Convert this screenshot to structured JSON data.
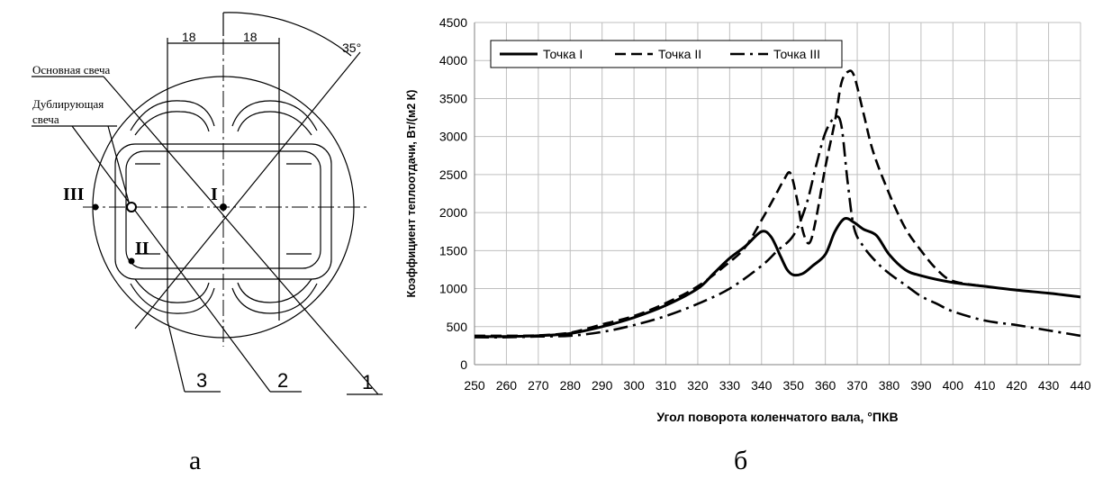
{
  "drawing": {
    "dim_left": "18",
    "dim_right": "18",
    "angle": "35°",
    "label_main_plug": "Основная свеча",
    "label_backup_plug_line1": "Дублирующая",
    "label_backup_plug_line2": "свеча",
    "point_I": "I",
    "point_II": "II",
    "point_III": "III",
    "leader_1": "1",
    "leader_2": "2",
    "leader_3": "3"
  },
  "captions": {
    "left": "а",
    "right": "б"
  },
  "chart_data": {
    "type": "line",
    "xlabel": "Угол поворота коленчатого вала, °ПКВ",
    "ylabel": "Коэффициент теплоотдачи, Вт/(м2 К)",
    "xlim": [
      250,
      440
    ],
    "ylim": [
      0,
      4500
    ],
    "xticks": [
      250,
      260,
      270,
      280,
      290,
      300,
      310,
      320,
      330,
      340,
      350,
      360,
      370,
      380,
      390,
      400,
      410,
      420,
      430,
      440
    ],
    "yticks": [
      0,
      500,
      1000,
      1500,
      2000,
      2500,
      3000,
      3500,
      4000,
      4500
    ],
    "grid": true,
    "legend_position": "top-left",
    "series": [
      {
        "name": "Точка I",
        "dash": "solid",
        "points": [
          [
            250,
            370
          ],
          [
            260,
            370
          ],
          [
            270,
            380
          ],
          [
            280,
            410
          ],
          [
            290,
            500
          ],
          [
            300,
            620
          ],
          [
            310,
            780
          ],
          [
            320,
            1000
          ],
          [
            325,
            1200
          ],
          [
            330,
            1400
          ],
          [
            335,
            1560
          ],
          [
            340,
            1750
          ],
          [
            343,
            1680
          ],
          [
            346,
            1420
          ],
          [
            348,
            1250
          ],
          [
            350,
            1180
          ],
          [
            353,
            1200
          ],
          [
            356,
            1300
          ],
          [
            360,
            1450
          ],
          [
            363,
            1750
          ],
          [
            366,
            1920
          ],
          [
            369,
            1870
          ],
          [
            372,
            1780
          ],
          [
            376,
            1700
          ],
          [
            380,
            1450
          ],
          [
            385,
            1250
          ],
          [
            390,
            1170
          ],
          [
            400,
            1080
          ],
          [
            410,
            1030
          ],
          [
            420,
            980
          ],
          [
            430,
            940
          ],
          [
            440,
            890
          ]
        ]
      },
      {
        "name": "Точка II",
        "dash": "dashed",
        "points": [
          [
            250,
            380
          ],
          [
            260,
            380
          ],
          [
            270,
            385
          ],
          [
            280,
            420
          ],
          [
            290,
            530
          ],
          [
            300,
            640
          ],
          [
            310,
            810
          ],
          [
            320,
            1030
          ],
          [
            330,
            1350
          ],
          [
            335,
            1550
          ],
          [
            340,
            1900
          ],
          [
            344,
            2200
          ],
          [
            347,
            2430
          ],
          [
            349,
            2520
          ],
          [
            351,
            2200
          ],
          [
            353,
            1750
          ],
          [
            355,
            1600
          ],
          [
            357,
            1900
          ],
          [
            360,
            2600
          ],
          [
            363,
            3200
          ],
          [
            365,
            3700
          ],
          [
            367,
            3850
          ],
          [
            369,
            3800
          ],
          [
            372,
            3300
          ],
          [
            375,
            2800
          ],
          [
            380,
            2250
          ],
          [
            385,
            1800
          ],
          [
            390,
            1500
          ],
          [
            395,
            1250
          ],
          [
            400,
            1100
          ],
          [
            410,
            1030
          ]
        ]
      },
      {
        "name": "Точка III",
        "dash": "dashdot",
        "points": [
          [
            250,
            360
          ],
          [
            260,
            360
          ],
          [
            270,
            370
          ],
          [
            280,
            380
          ],
          [
            290,
            430
          ],
          [
            300,
            520
          ],
          [
            310,
            640
          ],
          [
            320,
            800
          ],
          [
            330,
            1000
          ],
          [
            340,
            1300
          ],
          [
            345,
            1500
          ],
          [
            350,
            1700
          ],
          [
            354,
            2100
          ],
          [
            357,
            2600
          ],
          [
            360,
            3050
          ],
          [
            363,
            3250
          ],
          [
            365,
            3150
          ],
          [
            367,
            2400
          ],
          [
            369,
            1800
          ],
          [
            372,
            1550
          ],
          [
            376,
            1350
          ],
          [
            380,
            1200
          ],
          [
            385,
            1050
          ],
          [
            390,
            900
          ],
          [
            395,
            800
          ],
          [
            400,
            700
          ],
          [
            410,
            580
          ],
          [
            420,
            520
          ],
          [
            430,
            450
          ],
          [
            440,
            380
          ]
        ]
      }
    ]
  }
}
